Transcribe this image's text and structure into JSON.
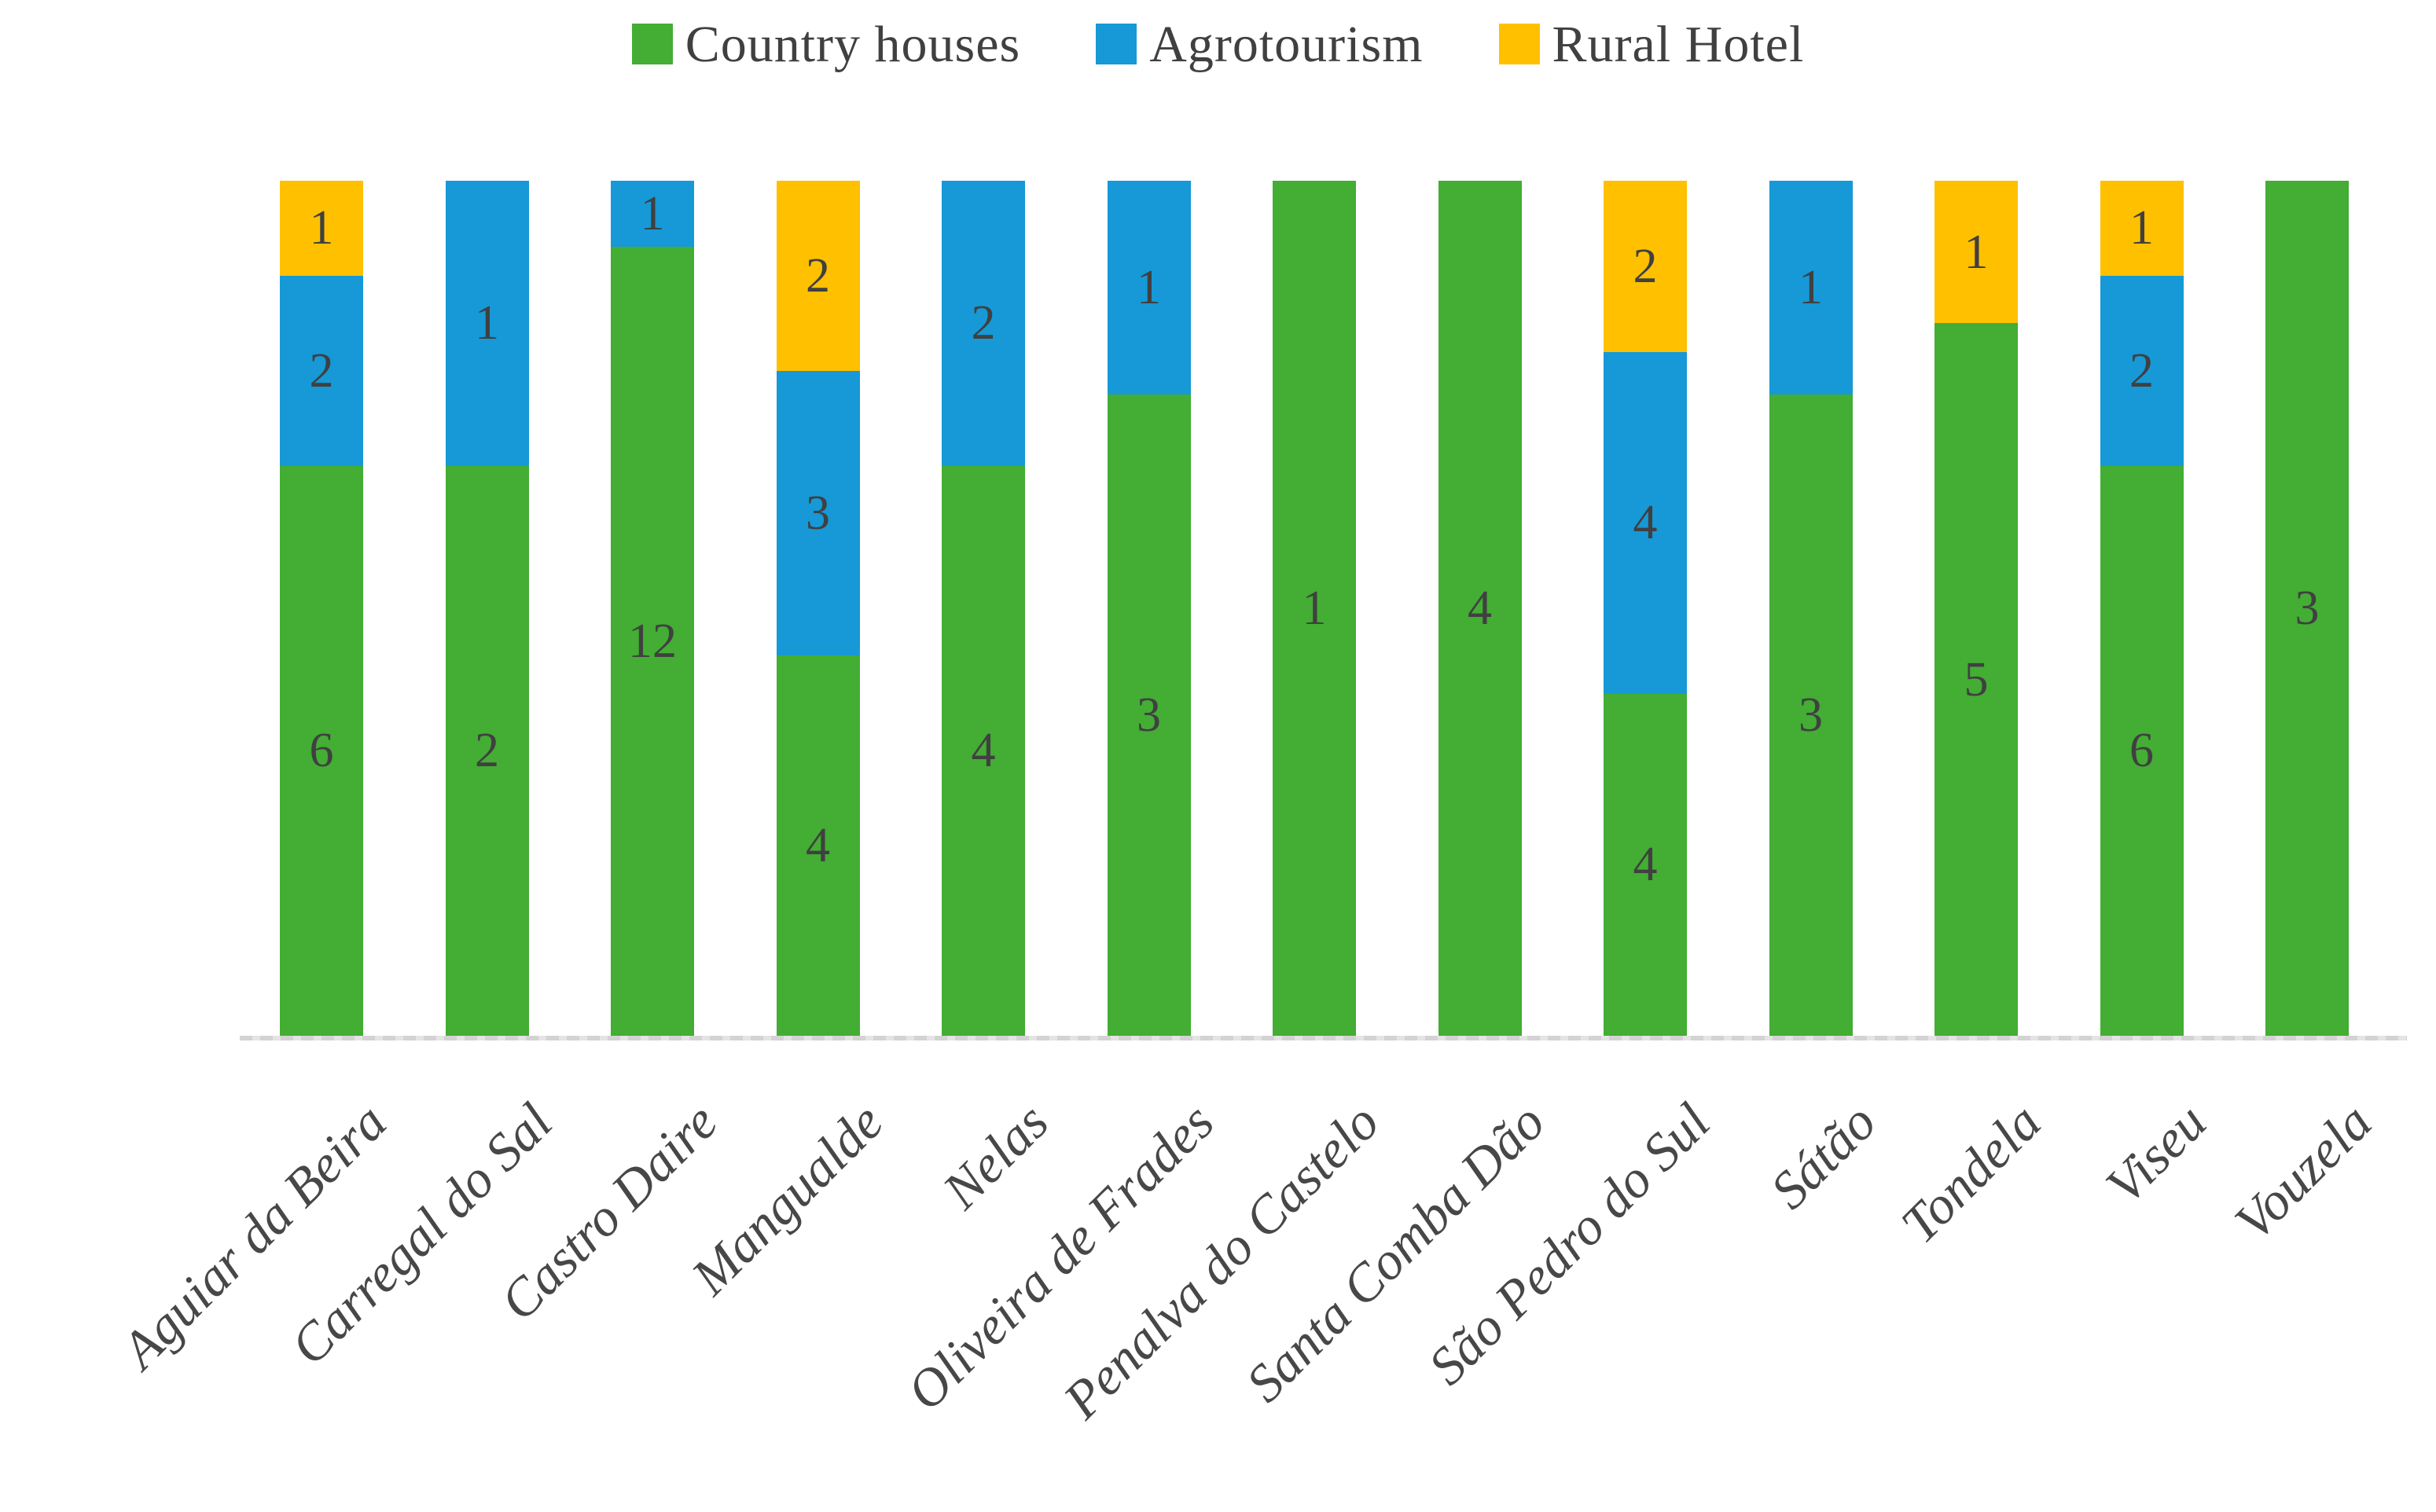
{
  "chart_data": {
    "type": "bar",
    "stacked": "percent",
    "orientation": "vertical",
    "title": "",
    "xlabel": "",
    "ylabel": "",
    "grid": false,
    "legend_position": "top",
    "categories": [
      "Aguiar da Beira",
      "Carregal do Sal",
      "Castro Daire",
      "Mangualde",
      "Nelas",
      "Oliveira de Frades",
      "Penalva do Castelo",
      "Santa Comba Dão",
      "São Pedro do Sul",
      "Sátão",
      "Tondela",
      "Viseu",
      "Vouzela"
    ],
    "series": [
      {
        "name": "Country houses",
        "color": "#43AD34",
        "values": [
          6,
          2,
          12,
          4,
          4,
          3,
          1,
          4,
          4,
          3,
          5,
          6,
          3
        ]
      },
      {
        "name": "Agrotourism",
        "color": "#1699D6",
        "values": [
          2,
          1,
          1,
          3,
          2,
          1,
          0,
          0,
          4,
          1,
          0,
          2,
          0
        ]
      },
      {
        "name": "Rural Hotel",
        "color": "#FFC000",
        "values": [
          1,
          0,
          0,
          2,
          0,
          0,
          0,
          0,
          2,
          0,
          1,
          1,
          0
        ]
      }
    ],
    "value_label_color": "#404040",
    "category_label_color": "#474747",
    "legend_label_color": "#404040",
    "axis_line_color": "#D3D3D3",
    "value_labels_shown": true
  }
}
